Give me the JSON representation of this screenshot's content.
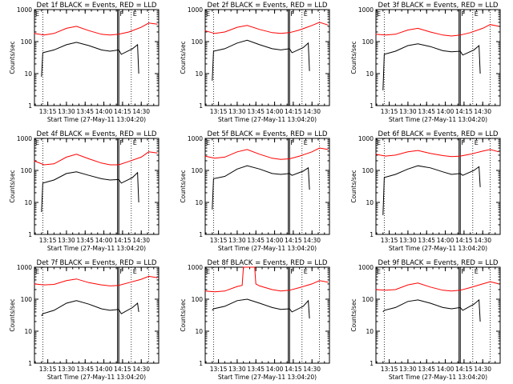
{
  "layout_labels": {
    "ylabel": "Counts/sec",
    "xlabel": "Start Time (27-May-11 13:04:20)",
    "marker_a": "F",
    "marker_b": "E"
  },
  "colors": {
    "events": "#000000",
    "lld": "#ff0000",
    "axis": "#000000"
  },
  "chart_data": [
    {
      "type": "line",
      "title": "Det 1f BLACK = Events, RED = LLD",
      "xlabel": "Start Time (27-May-11 13:04:20)",
      "ylabel": "Counts/sec",
      "xlim": [
        "13:04:20",
        "14:44:00"
      ],
      "ylim": [
        1,
        1000
      ],
      "yscale": "log",
      "xtick_labels": [
        "13:15",
        "13:30",
        "13:45",
        "14:00",
        "14:15",
        "14:30"
      ],
      "ytick_labels": [
        "1",
        "10",
        "100",
        "1000"
      ],
      "series": [
        {
          "name": "Events",
          "color": "#000000",
          "x": [
            "13:10",
            "13:11",
            "13:20",
            "13:30",
            "13:38",
            "13:48",
            "13:58",
            "14:05",
            "14:12",
            "14:14",
            "14:23",
            "14:27",
            "14:28"
          ],
          "values": [
            8,
            45,
            55,
            80,
            95,
            75,
            55,
            50,
            55,
            40,
            60,
            80,
            10
          ]
        },
        {
          "name": "LLD",
          "color": "#ff0000",
          "x": [
            "13:04",
            "13:12",
            "13:20",
            "13:30",
            "13:38",
            "13:48",
            "13:58",
            "14:05",
            "14:12",
            "14:20",
            "14:30",
            "14:36",
            "14:43"
          ],
          "values": [
            180,
            160,
            180,
            260,
            300,
            220,
            170,
            160,
            170,
            200,
            280,
            380,
            350
          ]
        }
      ],
      "vertical_lines": [
        "13:11",
        "14:11",
        "14:12",
        "14:22",
        "14:36"
      ]
    },
    {
      "type": "line",
      "title": "Det 2f BLACK = Events, RED = LLD",
      "xlabel": "Start Time (27-May-11 13:04:20)",
      "ylabel": "Counts/sec",
      "xlim": [
        "13:04:20",
        "14:44:00"
      ],
      "ylim": [
        1,
        1000
      ],
      "yscale": "log",
      "xtick_labels": [
        "13:15",
        "13:30",
        "13:45",
        "14:00",
        "14:15",
        "14:30"
      ],
      "ytick_labels": [
        "1",
        "10",
        "100",
        "1000"
      ],
      "series": [
        {
          "name": "Events",
          "color": "#000000",
          "x": [
            "13:10",
            "13:11",
            "13:20",
            "13:30",
            "13:38",
            "13:48",
            "13:58",
            "14:05",
            "14:12",
            "14:14",
            "14:23",
            "14:27",
            "14:28"
          ],
          "values": [
            6,
            50,
            60,
            90,
            110,
            80,
            60,
            55,
            60,
            45,
            65,
            90,
            12
          ]
        },
        {
          "name": "LLD",
          "color": "#ff0000",
          "x": [
            "13:04",
            "13:12",
            "13:20",
            "13:30",
            "13:38",
            "13:48",
            "13:58",
            "14:05",
            "14:12",
            "14:20",
            "14:30",
            "14:36",
            "14:43"
          ],
          "values": [
            220,
            180,
            200,
            280,
            320,
            240,
            190,
            180,
            190,
            230,
            320,
            400,
            330
          ]
        }
      ],
      "vertical_lines": [
        "13:11",
        "14:11",
        "14:12",
        "14:22",
        "14:36"
      ]
    },
    {
      "type": "line",
      "title": "Det 3f BLACK = Events, RED = LLD",
      "xlabel": "Start Time (27-May-11 13:04:20)",
      "ylabel": "Counts/sec",
      "xlim": [
        "13:04:20",
        "14:44:00"
      ],
      "ylim": [
        1,
        1000
      ],
      "yscale": "log",
      "xtick_labels": [
        "13:15",
        "13:30",
        "13:45",
        "14:00",
        "14:15",
        "14:30"
      ],
      "ytick_labels": [
        "1",
        "10",
        "100",
        "1000"
      ],
      "series": [
        {
          "name": "Events",
          "color": "#000000",
          "x": [
            "13:10",
            "13:11",
            "13:20",
            "13:30",
            "13:38",
            "13:48",
            "13:58",
            "14:05",
            "14:12",
            "14:14",
            "14:23",
            "14:27",
            "14:28"
          ],
          "values": [
            3,
            40,
            50,
            75,
            85,
            70,
            52,
            48,
            50,
            38,
            55,
            75,
            10
          ]
        },
        {
          "name": "LLD",
          "color": "#ff0000",
          "x": [
            "13:04",
            "13:12",
            "13:20",
            "13:30",
            "13:38",
            "13:48",
            "13:58",
            "14:05",
            "14:12",
            "14:20",
            "14:30",
            "14:36",
            "14:43"
          ],
          "values": [
            170,
            160,
            170,
            230,
            260,
            200,
            160,
            150,
            160,
            190,
            260,
            340,
            300
          ]
        }
      ],
      "vertical_lines": [
        "13:11",
        "14:11",
        "14:12",
        "14:22",
        "14:36"
      ]
    },
    {
      "type": "line",
      "title": "Det 4f BLACK = Events, RED = LLD",
      "xlabel": "Start Time (27-May-11 13:04:20)",
      "ylabel": "Counts/sec",
      "xlim": [
        "13:04:20",
        "14:44:00"
      ],
      "ylim": [
        1,
        1000
      ],
      "yscale": "log",
      "xtick_labels": [
        "13:15",
        "13:30",
        "13:45",
        "14:00",
        "14:15",
        "14:30"
      ],
      "ytick_labels": [
        "1",
        "10",
        "100",
        "1000"
      ],
      "series": [
        {
          "name": "Events",
          "color": "#000000",
          "x": [
            "13:10",
            "13:11",
            "13:20",
            "13:30",
            "13:38",
            "13:48",
            "13:58",
            "14:05",
            "14:12",
            "14:14",
            "14:23",
            "14:27",
            "14:28"
          ],
          "values": [
            5,
            40,
            50,
            80,
            90,
            70,
            55,
            50,
            52,
            40,
            60,
            85,
            10
          ]
        },
        {
          "name": "LLD",
          "color": "#ff0000",
          "x": [
            "13:04",
            "13:12",
            "13:20",
            "13:30",
            "13:38",
            "13:48",
            "13:58",
            "14:05",
            "14:12",
            "14:20",
            "14:30",
            "14:36",
            "14:43"
          ],
          "values": [
            200,
            150,
            160,
            260,
            320,
            230,
            170,
            150,
            150,
            190,
            260,
            380,
            350
          ]
        }
      ],
      "vertical_lines": [
        "13:11",
        "14:11",
        "14:12",
        "14:22",
        "14:36"
      ]
    },
    {
      "type": "line",
      "title": "Det 5f BLACK = Events, RED = LLD",
      "xlabel": "Start Time (27-May-11 13:04:20)",
      "ylabel": "Counts/sec",
      "xlim": [
        "13:04:20",
        "14:44:00"
      ],
      "ylim": [
        1,
        1000
      ],
      "yscale": "log",
      "xtick_labels": [
        "13:15",
        "13:30",
        "13:45",
        "14:00",
        "14:15",
        "14:30"
      ],
      "ytick_labels": [
        "1",
        "10",
        "100",
        "1000"
      ],
      "series": [
        {
          "name": "Events",
          "color": "#000000",
          "x": [
            "13:10",
            "13:11",
            "13:20",
            "13:30",
            "13:38",
            "13:48",
            "13:58",
            "14:05",
            "14:12",
            "14:14",
            "14:23",
            "14:27",
            "14:28"
          ],
          "values": [
            6,
            55,
            65,
            110,
            140,
            110,
            80,
            75,
            80,
            70,
            95,
            120,
            25
          ]
        },
        {
          "name": "LLD",
          "color": "#ff0000",
          "x": [
            "13:04",
            "13:12",
            "13:20",
            "13:30",
            "13:38",
            "13:48",
            "13:58",
            "14:05",
            "14:12",
            "14:20",
            "14:30",
            "14:36",
            "14:43"
          ],
          "values": [
            280,
            240,
            260,
            380,
            450,
            320,
            240,
            220,
            230,
            280,
            380,
            500,
            450
          ]
        }
      ],
      "vertical_lines": [
        "13:11",
        "14:11",
        "14:12",
        "14:22",
        "14:36"
      ]
    },
    {
      "type": "line",
      "title": "Det 6f BLACK = Events, RED = LLD",
      "xlabel": "Start Time (27-May-11 13:04:20)",
      "ylabel": "Counts/sec",
      "xlim": [
        "13:04:20",
        "14:44:00"
      ],
      "ylim": [
        1,
        1000
      ],
      "yscale": "log",
      "xtick_labels": [
        "13:15",
        "13:30",
        "13:45",
        "14:00",
        "14:15",
        "14:30"
      ],
      "ytick_labels": [
        "1",
        "10",
        "100",
        "1000"
      ],
      "series": [
        {
          "name": "Events",
          "color": "#000000",
          "x": [
            "13:10",
            "13:11",
            "13:20",
            "13:30",
            "13:38",
            "13:48",
            "13:58",
            "14:05",
            "14:12",
            "14:14",
            "14:23",
            "14:27",
            "14:28"
          ],
          "values": [
            4,
            60,
            75,
            110,
            140,
            120,
            90,
            75,
            80,
            70,
            100,
            130,
            30
          ]
        },
        {
          "name": "LLD",
          "color": "#ff0000",
          "x": [
            "13:04",
            "13:12",
            "13:20",
            "13:30",
            "13:38",
            "13:48",
            "13:58",
            "14:05",
            "14:12",
            "14:20",
            "14:30",
            "14:36",
            "14:43"
          ],
          "values": [
            320,
            280,
            300,
            380,
            420,
            340,
            290,
            270,
            280,
            320,
            400,
            450,
            380
          ]
        }
      ],
      "vertical_lines": [
        "13:11",
        "14:11",
        "14:12",
        "14:22",
        "14:36"
      ]
    },
    {
      "type": "line",
      "title": "Det 7f BLACK = Events, RED = LLD",
      "xlabel": "Start Time (27-May-11 13:04:20)",
      "ylabel": "Counts/sec",
      "xlim": [
        "13:04:20",
        "14:44:00"
      ],
      "ylim": [
        1,
        1000
      ],
      "yscale": "log",
      "xtick_labels": [
        "13:15",
        "13:30",
        "13:45",
        "14:00",
        "14:15",
        "14:30"
      ],
      "ytick_labels": [
        "1",
        "10",
        "100",
        "1000"
      ],
      "series": [
        {
          "name": "Events",
          "color": "#000000",
          "x": [
            "13:10",
            "13:11",
            "13:20",
            "13:30",
            "13:38",
            "13:48",
            "13:58",
            "14:05",
            "14:12",
            "14:14",
            "14:23",
            "14:27",
            "14:28"
          ],
          "values": [
            30,
            35,
            45,
            75,
            90,
            70,
            50,
            45,
            48,
            35,
            55,
            75,
            40
          ]
        },
        {
          "name": "LLD",
          "color": "#ff0000",
          "x": [
            "13:04",
            "13:12",
            "13:20",
            "13:30",
            "13:38",
            "13:48",
            "13:58",
            "14:05",
            "14:12",
            "14:20",
            "14:30",
            "14:36",
            "14:43"
          ],
          "values": [
            300,
            280,
            290,
            380,
            430,
            330,
            280,
            260,
            270,
            330,
            420,
            520,
            470
          ]
        }
      ],
      "vertical_lines": [
        "13:11",
        "14:11",
        "14:12",
        "14:22",
        "14:36"
      ]
    },
    {
      "type": "line",
      "title": "Det 8f BLACK = Events, RED = LLD",
      "xlabel": "Start Time (27-May-11 13:04:20)",
      "ylabel": "Counts/sec",
      "xlim": [
        "13:04:20",
        "14:44:00"
      ],
      "ylim": [
        1,
        1000
      ],
      "yscale": "log",
      "xtick_labels": [
        "13:15",
        "13:30",
        "13:45",
        "14:00",
        "14:15",
        "14:30"
      ],
      "ytick_labels": [
        "1",
        "10",
        "100",
        "1000"
      ],
      "series": [
        {
          "name": "Events",
          "color": "#000000",
          "x": [
            "13:10",
            "13:11",
            "13:20",
            "13:30",
            "13:38",
            "13:48",
            "13:58",
            "14:05",
            "14:12",
            "14:14",
            "14:23",
            "14:27",
            "14:28"
          ],
          "values": [
            45,
            50,
            60,
            90,
            100,
            75,
            55,
            48,
            50,
            40,
            60,
            90,
            25
          ]
        },
        {
          "name": "LLD",
          "color": "#ff0000",
          "x": [
            "13:04",
            "13:12",
            "13:20",
            "13:30",
            "13:34",
            "13:35",
            "13:44",
            "13:45",
            "13:48",
            "13:58",
            "14:05",
            "14:12",
            "14:20",
            "14:30",
            "14:36",
            "14:43"
          ],
          "values": [
            180,
            170,
            180,
            250,
            270,
            1000,
            1000,
            300,
            260,
            200,
            180,
            190,
            230,
            300,
            380,
            340
          ]
        }
      ],
      "vertical_lines": [
        "13:11",
        "14:11",
        "14:12",
        "14:22",
        "14:36"
      ]
    },
    {
      "type": "line",
      "title": "Det 9f BLACK = Events, RED = LLD",
      "xlabel": "Start Time (27-May-11 13:04:20)",
      "ylabel": "Counts/sec",
      "xlim": [
        "13:04:20",
        "14:44:00"
      ],
      "ylim": [
        1,
        1000
      ],
      "yscale": "log",
      "xtick_labels": [
        "13:15",
        "13:30",
        "13:45",
        "14:00",
        "14:15",
        "14:30"
      ],
      "ytick_labels": [
        "1",
        "10",
        "100",
        "1000"
      ],
      "series": [
        {
          "name": "Events",
          "color": "#000000",
          "x": [
            "13:10",
            "13:11",
            "13:20",
            "13:30",
            "13:38",
            "13:48",
            "13:58",
            "14:05",
            "14:12",
            "14:14",
            "14:23",
            "14:27",
            "14:28"
          ],
          "values": [
            40,
            45,
            55,
            85,
            95,
            75,
            55,
            50,
            55,
            45,
            70,
            95,
            20
          ]
        },
        {
          "name": "LLD",
          "color": "#ff0000",
          "x": [
            "13:04",
            "13:12",
            "13:20",
            "13:30",
            "13:38",
            "13:48",
            "13:58",
            "14:05",
            "14:12",
            "14:20",
            "14:30",
            "14:36",
            "14:43"
          ],
          "values": [
            200,
            190,
            200,
            280,
            320,
            240,
            190,
            180,
            190,
            230,
            300,
            350,
            300
          ]
        }
      ],
      "vertical_lines": [
        "13:11",
        "14:11",
        "14:12",
        "14:22",
        "14:36"
      ]
    }
  ]
}
